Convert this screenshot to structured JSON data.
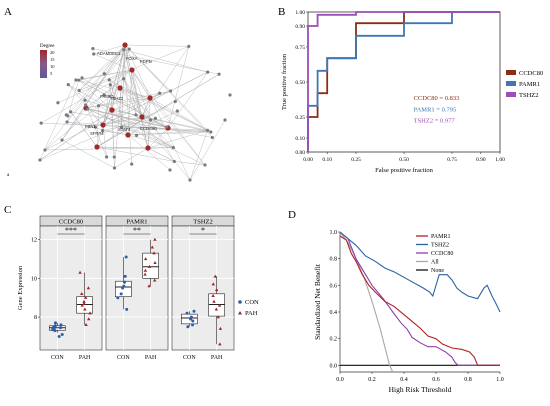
{
  "panels": {
    "a": "A",
    "b": "B",
    "c": "C",
    "d": "D"
  },
  "network": {
    "legend_title": "Degree",
    "legend_ticks": [
      "20",
      "15",
      "10",
      "5"
    ],
    "corner_mark": "a",
    "genes": [
      "ADAMDEC1",
      "PDPN",
      "PAMR1",
      "TSHZ2",
      "CCDC80",
      "FBN1",
      "STAT4",
      "SFRP4",
      "FOXA"
    ],
    "colors": {
      "hub": "#a02a2a",
      "node": "#7a7a86",
      "edge": "#a9a9a9"
    }
  },
  "chart_data": [
    {
      "type": "line",
      "panel": "B",
      "xlabel": "False positive fraction",
      "ylabel": "True positive fraction",
      "xticks": [
        "0.00",
        "0.10",
        "0.25",
        "0.50",
        "0.75",
        "0.90",
        "1.00"
      ],
      "yticks": [
        "0.00",
        "0.10",
        "0.25",
        "0.50",
        "0.75",
        "0.90",
        "1.00"
      ],
      "xlim": [
        0,
        1
      ],
      "ylim": [
        0,
        1
      ],
      "legend_position": "right",
      "series": [
        {
          "name": "CCDC80",
          "color": "#8b2d12",
          "auc_label": "CCDC80 = 0.833",
          "points": [
            [
              0,
              0
            ],
            [
              0,
              0.25
            ],
            [
              0.05,
              0.25
            ],
            [
              0.05,
              0.42
            ],
            [
              0.1,
              0.42
            ],
            [
              0.1,
              0.67
            ],
            [
              0.25,
              0.67
            ],
            [
              0.25,
              0.75
            ],
            [
              0.25,
              0.92
            ],
            [
              0.45,
              0.92
            ],
            [
              0.5,
              0.92
            ],
            [
              0.5,
              1
            ],
            [
              1,
              1
            ]
          ]
        },
        {
          "name": "PAMR1",
          "color": "#3f77b4",
          "auc_label": "PAMR1 = 0.795",
          "points": [
            [
              0,
              0
            ],
            [
              0,
              0.33
            ],
            [
              0.05,
              0.33
            ],
            [
              0.05,
              0.58
            ],
            [
              0.1,
              0.58
            ],
            [
              0.1,
              0.67
            ],
            [
              0.25,
              0.67
            ],
            [
              0.25,
              0.83
            ],
            [
              0.5,
              0.83
            ],
            [
              0.5,
              0.92
            ],
            [
              0.75,
              0.92
            ],
            [
              0.75,
              1
            ],
            [
              1,
              1
            ]
          ]
        },
        {
          "name": "TSHZ2",
          "color": "#9b4fb6",
          "auc_label": "TSHZ2 = 0.977",
          "points": [
            [
              0,
              0
            ],
            [
              0,
              0.9
            ],
            [
              0.05,
              0.9
            ],
            [
              0.05,
              0.98
            ],
            [
              0.25,
              0.98
            ],
            [
              0.25,
              1
            ],
            [
              1,
              1
            ]
          ]
        }
      ]
    },
    {
      "type": "box",
      "panel": "C",
      "ylabel": "Gene Expression",
      "yticks": [
        "8",
        "10",
        "12"
      ],
      "ylim": [
        6.3,
        12.7
      ],
      "groups": [
        "CON",
        "PAH"
      ],
      "facets": [
        {
          "name": "CCDC80",
          "sig": "***",
          "CON": {
            "q1": 7.32,
            "median": 7.45,
            "q3": 7.55,
            "lo": 7.2,
            "hi": 7.7,
            "pts": [
              7.0,
              7.1,
              7.3,
              7.35,
              7.4,
              7.45,
              7.5,
              7.55,
              7.6,
              7.7
            ]
          },
          "PAH": {
            "q1": 8.2,
            "median": 8.65,
            "q3": 9.05,
            "lo": 7.6,
            "hi": 10.3,
            "pts": [
              7.6,
              7.9,
              8.2,
              8.4,
              8.6,
              8.7,
              8.8,
              9.0,
              9.2,
              9.5,
              10.3
            ]
          }
        },
        {
          "name": "PAMR1",
          "sig": "**",
          "CON": {
            "q1": 9.05,
            "median": 9.55,
            "q3": 9.85,
            "lo": 8.4,
            "hi": 11.1,
            "pts": [
              8.4,
              9.0,
              9.2,
              9.5,
              9.6,
              9.8,
              10.1,
              11.1
            ]
          },
          "PAH": {
            "q1": 10.0,
            "median": 10.6,
            "q3": 11.3,
            "lo": 9.6,
            "hi": 12.0,
            "pts": [
              9.6,
              9.9,
              10.2,
              10.4,
              10.6,
              10.8,
              11.0,
              11.3,
              11.6,
              12.0
            ]
          }
        },
        {
          "name": "TSHZ2",
          "sig": "*",
          "CON": {
            "q1": 7.65,
            "median": 7.95,
            "q3": 8.15,
            "lo": 7.5,
            "hi": 8.3,
            "pts": [
              7.5,
              7.6,
              7.8,
              7.9,
              8.0,
              8.2,
              8.3
            ]
          },
          "PAH": {
            "q1": 8.05,
            "median": 8.65,
            "q3": 9.2,
            "lo": 6.6,
            "hi": 10.1,
            "pts": [
              6.6,
              7.4,
              8.0,
              8.4,
              8.6,
              8.8,
              9.1,
              9.4,
              9.7,
              10.1
            ]
          }
        }
      ],
      "legend": [
        {
          "name": "CON",
          "color": "#2e5fa6",
          "shape": "circle"
        },
        {
          "name": "PAH",
          "color": "#9c2424",
          "shape": "triangle"
        }
      ]
    },
    {
      "type": "line",
      "panel": "D",
      "xlabel": "High Risk Threshold",
      "ylabel": "Standardized Net Benefit",
      "xticks": [
        "0.0",
        "0.2",
        "0.4",
        "0.6",
        "0.8",
        "1.0"
      ],
      "yticks": [
        "0.0",
        "0.2",
        "0.4",
        "0.6",
        "0.8",
        "1.0"
      ],
      "xlim": [
        0,
        1
      ],
      "ylim": [
        -0.05,
        1.0
      ],
      "legend_position": "top-right",
      "series": [
        {
          "name": "PAMR1",
          "color": "#b02020",
          "points": [
            [
              0,
              0.97
            ],
            [
              0.04,
              0.94
            ],
            [
              0.07,
              0.84
            ],
            [
              0.1,
              0.78
            ],
            [
              0.14,
              0.68
            ],
            [
              0.18,
              0.6
            ],
            [
              0.22,
              0.55
            ],
            [
              0.28,
              0.48
            ],
            [
              0.34,
              0.44
            ],
            [
              0.4,
              0.38
            ],
            [
              0.45,
              0.33
            ],
            [
              0.5,
              0.28
            ],
            [
              0.55,
              0.22
            ],
            [
              0.6,
              0.2
            ],
            [
              0.64,
              0.16
            ],
            [
              0.7,
              0.13
            ],
            [
              0.76,
              0.12
            ],
            [
              0.81,
              0.1
            ],
            [
              0.84,
              0.06
            ],
            [
              0.86,
              0.0
            ],
            [
              1.0,
              0.0
            ]
          ]
        },
        {
          "name": "TSHZ2",
          "color": "#2a64a8",
          "points": [
            [
              0,
              1.0
            ],
            [
              0.05,
              0.95
            ],
            [
              0.1,
              0.9
            ],
            [
              0.16,
              0.82
            ],
            [
              0.22,
              0.78
            ],
            [
              0.28,
              0.73
            ],
            [
              0.34,
              0.7
            ],
            [
              0.4,
              0.66
            ],
            [
              0.46,
              0.62
            ],
            [
              0.52,
              0.58
            ],
            [
              0.56,
              0.55
            ],
            [
              0.58,
              0.52
            ],
            [
              0.62,
              0.68
            ],
            [
              0.67,
              0.68
            ],
            [
              0.7,
              0.64
            ],
            [
              0.73,
              0.58
            ],
            [
              0.76,
              0.55
            ],
            [
              0.8,
              0.52
            ],
            [
              0.86,
              0.5
            ],
            [
              0.9,
              0.58
            ],
            [
              0.92,
              0.6
            ],
            [
              0.95,
              0.52
            ],
            [
              0.98,
              0.45
            ],
            [
              1.0,
              0.4
            ]
          ]
        },
        {
          "name": "CCDC80",
          "color": "#8e3fb0",
          "points": [
            [
              0,
              1.0
            ],
            [
              0.05,
              0.95
            ],
            [
              0.1,
              0.8
            ],
            [
              0.14,
              0.72
            ],
            [
              0.2,
              0.6
            ],
            [
              0.27,
              0.5
            ],
            [
              0.33,
              0.4
            ],
            [
              0.38,
              0.32
            ],
            [
              0.42,
              0.27
            ],
            [
              0.45,
              0.21
            ],
            [
              0.5,
              0.17
            ],
            [
              0.55,
              0.14
            ],
            [
              0.6,
              0.14
            ],
            [
              0.63,
              0.12
            ],
            [
              0.66,
              0.1
            ],
            [
              0.7,
              0.06
            ],
            [
              0.72,
              0.02
            ],
            [
              0.74,
              0.0
            ],
            [
              1.0,
              0.0
            ]
          ]
        },
        {
          "name": "All",
          "color": "#a8a8a8",
          "points": [
            [
              0,
              1.0
            ],
            [
              0.05,
              0.92
            ],
            [
              0.1,
              0.8
            ],
            [
              0.15,
              0.66
            ],
            [
              0.2,
              0.48
            ],
            [
              0.25,
              0.28
            ],
            [
              0.28,
              0.14
            ],
            [
              0.31,
              0.0
            ],
            [
              0.33,
              -0.05
            ]
          ]
        },
        {
          "name": "None",
          "color": "#111111",
          "points": [
            [
              0,
              0
            ],
            [
              1,
              0
            ]
          ]
        }
      ]
    }
  ]
}
